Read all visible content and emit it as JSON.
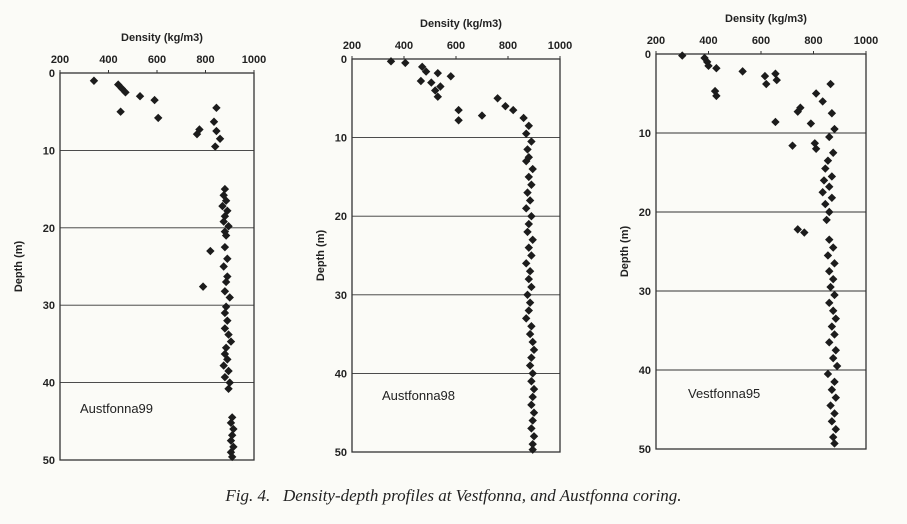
{
  "caption": {
    "figure_label": "Fig. 4.",
    "text": "Density-depth profiles at Vestfonna, and Austfonna coring."
  },
  "style": {
    "marker_color": "#1c1c1c",
    "grid_color": "#333333",
    "background": "#fbfbf7"
  },
  "chart_data": [
    {
      "type": "scatter",
      "name": "Austfonna99",
      "xlabel": "Density (kg/m3)",
      "ylabel": "Depth (m)",
      "xlim": [
        200,
        1000
      ],
      "ylim": [
        0,
        50
      ],
      "x_ticks": [
        200,
        400,
        600,
        800,
        1000
      ],
      "y_ticks": [
        0,
        10,
        20,
        30,
        40,
        50
      ],
      "x_axis_position": "top",
      "y_inverted": true,
      "grid": true,
      "points": [
        {
          "x": 340,
          "y": 1.0
        },
        {
          "x": 440,
          "y": 1.5
        },
        {
          "x": 455,
          "y": 2.0
        },
        {
          "x": 470,
          "y": 2.5
        },
        {
          "x": 530,
          "y": 3.0
        },
        {
          "x": 590,
          "y": 3.5
        },
        {
          "x": 450,
          "y": 5.0
        },
        {
          "x": 845,
          "y": 4.5
        },
        {
          "x": 605,
          "y": 5.8
        },
        {
          "x": 835,
          "y": 6.3
        },
        {
          "x": 775,
          "y": 7.3
        },
        {
          "x": 765,
          "y": 7.9
        },
        {
          "x": 845,
          "y": 7.5
        },
        {
          "x": 860,
          "y": 8.5
        },
        {
          "x": 840,
          "y": 9.5
        },
        {
          "x": 880,
          "y": 15.0
        },
        {
          "x": 875,
          "y": 15.8
        },
        {
          "x": 885,
          "y": 16.5
        },
        {
          "x": 870,
          "y": 17.2
        },
        {
          "x": 890,
          "y": 17.8
        },
        {
          "x": 880,
          "y": 18.5
        },
        {
          "x": 875,
          "y": 19.2
        },
        {
          "x": 895,
          "y": 19.8
        },
        {
          "x": 880,
          "y": 20.5
        },
        {
          "x": 885,
          "y": 21.0
        },
        {
          "x": 820,
          "y": 23.0
        },
        {
          "x": 880,
          "y": 22.5
        },
        {
          "x": 890,
          "y": 24.0
        },
        {
          "x": 875,
          "y": 25.0
        },
        {
          "x": 890,
          "y": 26.3
        },
        {
          "x": 885,
          "y": 27.0
        },
        {
          "x": 790,
          "y": 27.6
        },
        {
          "x": 880,
          "y": 28.2
        },
        {
          "x": 900,
          "y": 29.0
        },
        {
          "x": 885,
          "y": 30.2
        },
        {
          "x": 880,
          "y": 31.0
        },
        {
          "x": 890,
          "y": 32.0
        },
        {
          "x": 880,
          "y": 33.0
        },
        {
          "x": 895,
          "y": 33.8
        },
        {
          "x": 905,
          "y": 34.7
        },
        {
          "x": 885,
          "y": 35.5
        },
        {
          "x": 880,
          "y": 36.3
        },
        {
          "x": 890,
          "y": 37.0
        },
        {
          "x": 875,
          "y": 37.8
        },
        {
          "x": 895,
          "y": 38.5
        },
        {
          "x": 880,
          "y": 39.3
        },
        {
          "x": 900,
          "y": 40.0
        },
        {
          "x": 895,
          "y": 40.8
        },
        {
          "x": 910,
          "y": 44.5
        },
        {
          "x": 905,
          "y": 45.2
        },
        {
          "x": 915,
          "y": 46.0
        },
        {
          "x": 910,
          "y": 46.8
        },
        {
          "x": 905,
          "y": 47.5
        },
        {
          "x": 915,
          "y": 48.3
        },
        {
          "x": 905,
          "y": 49.0
        },
        {
          "x": 910,
          "y": 49.6
        }
      ]
    },
    {
      "type": "scatter",
      "name": "Austfonna98",
      "xlabel": "Density (kg/m3)",
      "ylabel": "Depth (m)",
      "xlim": [
        200,
        1000
      ],
      "ylim": [
        0,
        50
      ],
      "x_ticks": [
        200,
        400,
        600,
        800,
        1000
      ],
      "y_ticks": [
        0,
        10,
        20,
        30,
        40,
        50
      ],
      "x_axis_position": "top",
      "y_inverted": true,
      "grid": true,
      "points": [
        {
          "x": 350,
          "y": 0.3
        },
        {
          "x": 405,
          "y": 0.5
        },
        {
          "x": 470,
          "y": 1.0
        },
        {
          "x": 485,
          "y": 1.6
        },
        {
          "x": 530,
          "y": 1.8
        },
        {
          "x": 580,
          "y": 2.2
        },
        {
          "x": 465,
          "y": 2.8
        },
        {
          "x": 505,
          "y": 3.0
        },
        {
          "x": 540,
          "y": 3.5
        },
        {
          "x": 520,
          "y": 4.0
        },
        {
          "x": 530,
          "y": 4.8
        },
        {
          "x": 610,
          "y": 6.5
        },
        {
          "x": 610,
          "y": 7.8
        },
        {
          "x": 700,
          "y": 7.2
        },
        {
          "x": 760,
          "y": 5.0
        },
        {
          "x": 790,
          "y": 6.0
        },
        {
          "x": 820,
          "y": 6.5
        },
        {
          "x": 860,
          "y": 7.5
        },
        {
          "x": 880,
          "y": 8.5
        },
        {
          "x": 870,
          "y": 9.5
        },
        {
          "x": 890,
          "y": 10.5
        },
        {
          "x": 875,
          "y": 11.5
        },
        {
          "x": 880,
          "y": 12.5
        },
        {
          "x": 870,
          "y": 13.0
        },
        {
          "x": 895,
          "y": 14.0
        },
        {
          "x": 880,
          "y": 15.0
        },
        {
          "x": 890,
          "y": 16.0
        },
        {
          "x": 875,
          "y": 17.0
        },
        {
          "x": 885,
          "y": 18.0
        },
        {
          "x": 870,
          "y": 19.0
        },
        {
          "x": 890,
          "y": 20.0
        },
        {
          "x": 880,
          "y": 21.0
        },
        {
          "x": 875,
          "y": 22.0
        },
        {
          "x": 895,
          "y": 23.0
        },
        {
          "x": 880,
          "y": 24.0
        },
        {
          "x": 890,
          "y": 25.0
        },
        {
          "x": 870,
          "y": 26.0
        },
        {
          "x": 885,
          "y": 27.0
        },
        {
          "x": 880,
          "y": 28.0
        },
        {
          "x": 890,
          "y": 29.0
        },
        {
          "x": 875,
          "y": 30.0
        },
        {
          "x": 885,
          "y": 31.0
        },
        {
          "x": 880,
          "y": 32.0
        },
        {
          "x": 870,
          "y": 33.0
        },
        {
          "x": 890,
          "y": 34.0
        },
        {
          "x": 885,
          "y": 35.0
        },
        {
          "x": 895,
          "y": 36.0
        },
        {
          "x": 900,
          "y": 37.0
        },
        {
          "x": 890,
          "y": 38.0
        },
        {
          "x": 885,
          "y": 39.0
        },
        {
          "x": 895,
          "y": 40.0
        },
        {
          "x": 890,
          "y": 41.0
        },
        {
          "x": 900,
          "y": 42.0
        },
        {
          "x": 895,
          "y": 43.0
        },
        {
          "x": 890,
          "y": 44.0
        },
        {
          "x": 900,
          "y": 45.0
        },
        {
          "x": 895,
          "y": 46.0
        },
        {
          "x": 890,
          "y": 47.0
        },
        {
          "x": 900,
          "y": 48.0
        },
        {
          "x": 895,
          "y": 49.0
        },
        {
          "x": 895,
          "y": 49.7
        }
      ]
    },
    {
      "type": "scatter",
      "name": "Vestfonna95",
      "xlabel": "Density (kg/m3)",
      "ylabel": "Depth (m)",
      "xlim": [
        200,
        1000
      ],
      "ylim": [
        0,
        50
      ],
      "x_ticks": [
        200,
        400,
        600,
        800,
        1000
      ],
      "y_ticks": [
        0,
        10,
        20,
        30,
        40,
        50
      ],
      "x_axis_position": "top",
      "y_inverted": true,
      "grid": true,
      "points": [
        {
          "x": 300,
          "y": 0.2
        },
        {
          "x": 385,
          "y": 0.5
        },
        {
          "x": 395,
          "y": 1.0
        },
        {
          "x": 400,
          "y": 1.5
        },
        {
          "x": 430,
          "y": 1.8
        },
        {
          "x": 530,
          "y": 2.2
        },
        {
          "x": 615,
          "y": 2.8
        },
        {
          "x": 655,
          "y": 2.5
        },
        {
          "x": 660,
          "y": 3.3
        },
        {
          "x": 620,
          "y": 3.8
        },
        {
          "x": 425,
          "y": 4.7
        },
        {
          "x": 430,
          "y": 5.3
        },
        {
          "x": 810,
          "y": 5.0
        },
        {
          "x": 835,
          "y": 6.0
        },
        {
          "x": 750,
          "y": 6.8
        },
        {
          "x": 740,
          "y": 7.3
        },
        {
          "x": 655,
          "y": 8.6
        },
        {
          "x": 790,
          "y": 8.8
        },
        {
          "x": 720,
          "y": 11.6
        },
        {
          "x": 805,
          "y": 11.3
        },
        {
          "x": 810,
          "y": 12.0
        },
        {
          "x": 865,
          "y": 3.8
        },
        {
          "x": 870,
          "y": 7.5
        },
        {
          "x": 880,
          "y": 9.5
        },
        {
          "x": 860,
          "y": 10.5
        },
        {
          "x": 875,
          "y": 12.5
        },
        {
          "x": 855,
          "y": 13.5
        },
        {
          "x": 845,
          "y": 14.5
        },
        {
          "x": 870,
          "y": 15.5
        },
        {
          "x": 840,
          "y": 16.0
        },
        {
          "x": 860,
          "y": 16.8
        },
        {
          "x": 835,
          "y": 17.5
        },
        {
          "x": 870,
          "y": 18.2
        },
        {
          "x": 845,
          "y": 19.0
        },
        {
          "x": 860,
          "y": 20.0
        },
        {
          "x": 850,
          "y": 21.0
        },
        {
          "x": 740,
          "y": 22.2
        },
        {
          "x": 765,
          "y": 22.6
        },
        {
          "x": 860,
          "y": 23.5
        },
        {
          "x": 875,
          "y": 24.5
        },
        {
          "x": 855,
          "y": 25.5
        },
        {
          "x": 880,
          "y": 26.5
        },
        {
          "x": 860,
          "y": 27.5
        },
        {
          "x": 875,
          "y": 28.5
        },
        {
          "x": 865,
          "y": 29.5
        },
        {
          "x": 880,
          "y": 30.5
        },
        {
          "x": 860,
          "y": 31.5
        },
        {
          "x": 875,
          "y": 32.5
        },
        {
          "x": 885,
          "y": 33.5
        },
        {
          "x": 870,
          "y": 34.5
        },
        {
          "x": 880,
          "y": 35.5
        },
        {
          "x": 860,
          "y": 36.5
        },
        {
          "x": 885,
          "y": 37.5
        },
        {
          "x": 875,
          "y": 38.5
        },
        {
          "x": 890,
          "y": 39.5
        },
        {
          "x": 855,
          "y": 40.5
        },
        {
          "x": 880,
          "y": 41.5
        },
        {
          "x": 870,
          "y": 42.5
        },
        {
          "x": 885,
          "y": 43.5
        },
        {
          "x": 865,
          "y": 44.5
        },
        {
          "x": 880,
          "y": 45.5
        },
        {
          "x": 870,
          "y": 46.5
        },
        {
          "x": 885,
          "y": 47.5
        },
        {
          "x": 875,
          "y": 48.5
        },
        {
          "x": 880,
          "y": 49.3
        }
      ]
    }
  ]
}
